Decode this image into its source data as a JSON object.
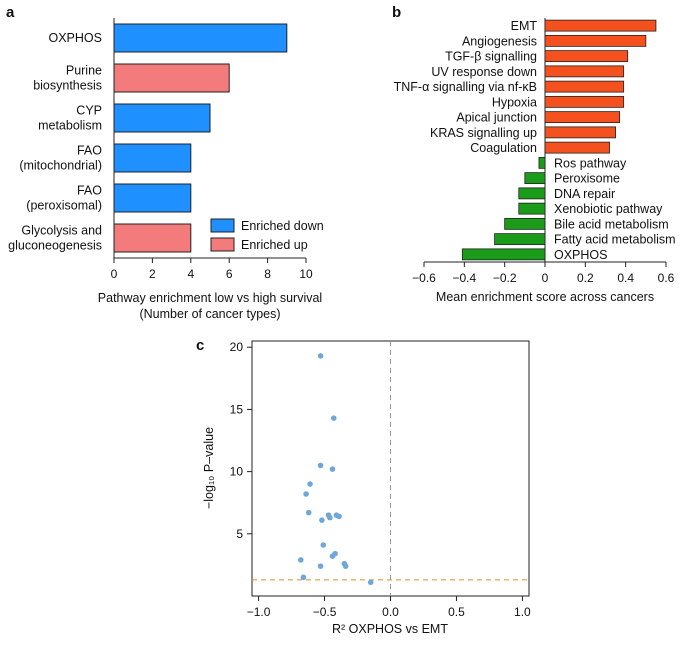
{
  "panels": {
    "a": "a",
    "b": "b",
    "c": "c"
  },
  "colors": {
    "enriched_down": "#1e90ff",
    "enriched_up": "#f47b7b",
    "positive_bar": "#f4511e",
    "negative_bar": "#1a9c1a",
    "scatter_point": "#6fa8d8",
    "vertical_ref": "#999999",
    "threshold_line": "#d9902a"
  },
  "chart_data": [
    {
      "id": "a",
      "type": "bar",
      "orientation": "horizontal",
      "categories": [
        [
          "OXPHOS"
        ],
        [
          "Purine",
          "biosynthesis"
        ],
        [
          "CYP",
          "metabolism"
        ],
        [
          "FAO",
          "(mitochondrial)"
        ],
        [
          "FAO",
          "(peroxisomal)"
        ],
        [
          "Glycolysis and",
          "gluconeogenesis"
        ]
      ],
      "values": [
        9,
        6,
        5,
        4,
        4,
        4
      ],
      "groups": [
        "down",
        "up",
        "down",
        "down",
        "down",
        "up"
      ],
      "legend": [
        {
          "key": "down",
          "label": "Enriched down"
        },
        {
          "key": "up",
          "label": "Enriched up"
        }
      ],
      "legend_position": "bottom-right",
      "xlim": [
        0,
        10
      ],
      "xticks": [
        0,
        2,
        4,
        6,
        8,
        10
      ],
      "xlabel": [
        "Pathway enrichment low vs high survival",
        "(Number of cancer types)"
      ]
    },
    {
      "id": "b",
      "type": "bar",
      "orientation": "horizontal",
      "categories": [
        "EMT",
        "Angiogenesis",
        "TGF-β signalling",
        "UV response down",
        "TNF-α signalling via nf-κB",
        "Hypoxia",
        "Apical junction",
        "KRAS signalling up",
        "Coagulation",
        "Ros pathway",
        "Peroxisome",
        "DNA repair",
        "Xenobiotic pathway",
        "Bile acid metabolism",
        "Fatty acid metabolism",
        "OXPHOS"
      ],
      "values": [
        0.55,
        0.5,
        0.41,
        0.39,
        0.39,
        0.39,
        0.37,
        0.35,
        0.32,
        -0.03,
        -0.1,
        -0.13,
        -0.13,
        -0.2,
        -0.25,
        -0.41
      ],
      "xlim": [
        -0.6,
        0.6
      ],
      "xticks": [
        "−0.6",
        "−0.4",
        "−0.2",
        "0",
        "0.2",
        "0.4",
        "0.6"
      ],
      "xtick_values": [
        -0.6,
        -0.4,
        -0.2,
        0,
        0.2,
        0.4,
        0.6
      ],
      "xlabel": "Mean enrichment score across cancers"
    },
    {
      "id": "c",
      "type": "scatter",
      "points": [
        {
          "x": -0.53,
          "y": 19.3
        },
        {
          "x": -0.43,
          "y": 14.3
        },
        {
          "x": -0.53,
          "y": 10.5
        },
        {
          "x": -0.44,
          "y": 10.2
        },
        {
          "x": -0.61,
          "y": 9.0
        },
        {
          "x": -0.64,
          "y": 8.2
        },
        {
          "x": -0.47,
          "y": 6.5
        },
        {
          "x": -0.41,
          "y": 6.5
        },
        {
          "x": -0.39,
          "y": 6.4
        },
        {
          "x": -0.62,
          "y": 6.7
        },
        {
          "x": -0.46,
          "y": 6.3
        },
        {
          "x": -0.52,
          "y": 6.1
        },
        {
          "x": -0.51,
          "y": 4.1
        },
        {
          "x": -0.44,
          "y": 3.2
        },
        {
          "x": -0.42,
          "y": 3.4
        },
        {
          "x": -0.68,
          "y": 2.9
        },
        {
          "x": -0.53,
          "y": 2.4
        },
        {
          "x": -0.35,
          "y": 2.6
        },
        {
          "x": -0.34,
          "y": 2.4
        },
        {
          "x": -0.66,
          "y": 1.5
        },
        {
          "x": -0.15,
          "y": 1.1
        }
      ],
      "xlim": [
        -1.05,
        1.05
      ],
      "ylim": [
        0,
        20.5
      ],
      "xticks": [
        "−1.0",
        "−0.5",
        "0.0",
        "0.5",
        "1.0"
      ],
      "xtick_values": [
        -1.0,
        -0.5,
        0.0,
        0.5,
        1.0
      ],
      "yticks": [
        "5",
        "10",
        "15",
        "20"
      ],
      "ytick_values": [
        5,
        10,
        15,
        20
      ],
      "vline_x": 0,
      "hline_y": 1.3,
      "xlabel": "R² OXPHOS vs EMT",
      "ylabel": "−log₁₀ P–value"
    }
  ]
}
